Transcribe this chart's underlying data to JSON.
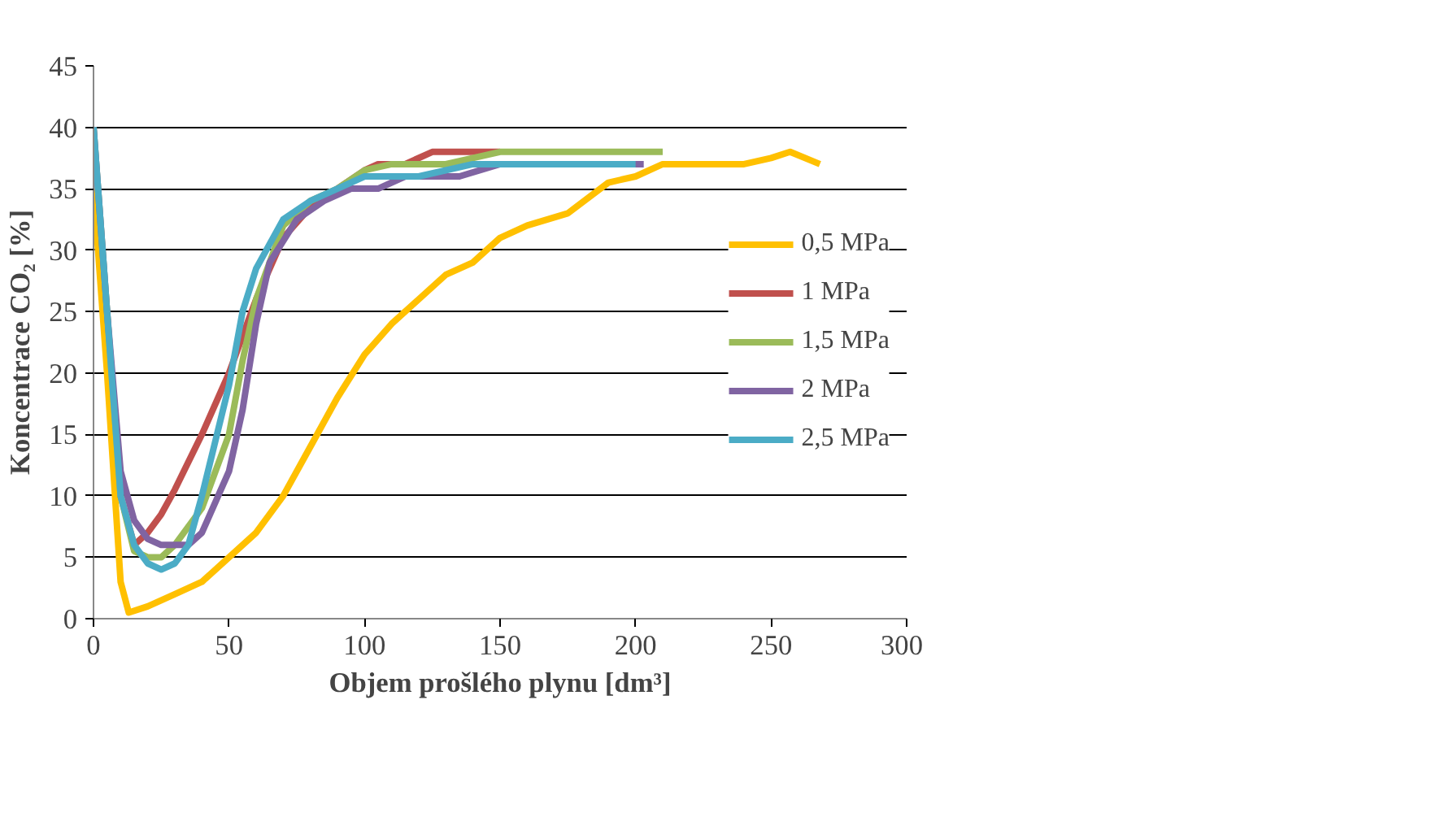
{
  "chart_data": {
    "type": "line",
    "xlabel": "Objem prošlého plynu [dm³]",
    "ylabel": "Koncentrace CO₂ [%]",
    "xlim": [
      0,
      300
    ],
    "ylim": [
      0,
      45
    ],
    "xticks": [
      0,
      50,
      100,
      150,
      200,
      250,
      300
    ],
    "yticks": [
      0,
      5,
      10,
      15,
      20,
      25,
      30,
      35,
      40,
      45
    ],
    "grid": "y",
    "legend": "right",
    "marker": "none",
    "line_style": "solid",
    "series": [
      {
        "name": "0,5 MPa",
        "color": "#ffc000",
        "x": [
          0,
          5,
          10,
          13,
          20,
          30,
          40,
          50,
          60,
          70,
          80,
          90,
          100,
          110,
          120,
          130,
          140,
          150,
          160,
          175,
          190,
          200,
          210,
          220,
          240,
          250,
          257,
          268
        ],
        "values": [
          35,
          20,
          3,
          0.5,
          1,
          2,
          3,
          5,
          7,
          10,
          14,
          18,
          21.5,
          24,
          26,
          28,
          29,
          31,
          32,
          33,
          35.5,
          36,
          37,
          37,
          37,
          37.5,
          38,
          37
        ]
      },
      {
        "name": "1 MPa",
        "color": "#c0504d",
        "x": [
          10,
          15,
          20,
          25,
          30,
          40,
          50,
          55,
          60,
          70,
          80,
          90,
          100,
          105,
          115,
          125,
          140,
          150
        ],
        "values": [
          10,
          6,
          7,
          8.5,
          10.5,
          15,
          20,
          23,
          26,
          31,
          33.5,
          35,
          36.5,
          37,
          37,
          38,
          38,
          38
        ]
      },
      {
        "name": "1,5 MPa",
        "color": "#9bbb59",
        "x": [
          0,
          5,
          10,
          15,
          20,
          25,
          30,
          40,
          50,
          55,
          60,
          70,
          80,
          90,
          100,
          110,
          130,
          150,
          210
        ],
        "values": [
          40,
          25,
          10,
          5.5,
          5,
          5,
          6,
          9,
          15,
          21,
          26,
          32,
          34,
          35,
          36.5,
          37,
          37,
          38,
          38
        ]
      },
      {
        "name": "2 MPa",
        "color": "#8064a2",
        "x": [
          0,
          5,
          10,
          15,
          20,
          25,
          35,
          40,
          50,
          55,
          60,
          65,
          75,
          85,
          95,
          105,
          115,
          135,
          150,
          203
        ],
        "values": [
          40,
          25,
          12,
          8,
          6.5,
          6,
          6,
          7,
          12,
          17,
          24,
          29,
          32.5,
          34,
          35,
          35,
          36,
          36,
          37,
          37
        ]
      },
      {
        "name": "2,5 MPa",
        "color": "#4bacc6",
        "x": [
          0,
          5,
          10,
          15,
          20,
          25,
          30,
          35,
          40,
          50,
          55,
          60,
          70,
          80,
          90,
          100,
          120,
          140,
          200
        ],
        "values": [
          40,
          25,
          10,
          6,
          4.5,
          4,
          4.5,
          6,
          10,
          19,
          25,
          28.5,
          32.5,
          34,
          35,
          36,
          36,
          37,
          37
        ]
      }
    ]
  }
}
